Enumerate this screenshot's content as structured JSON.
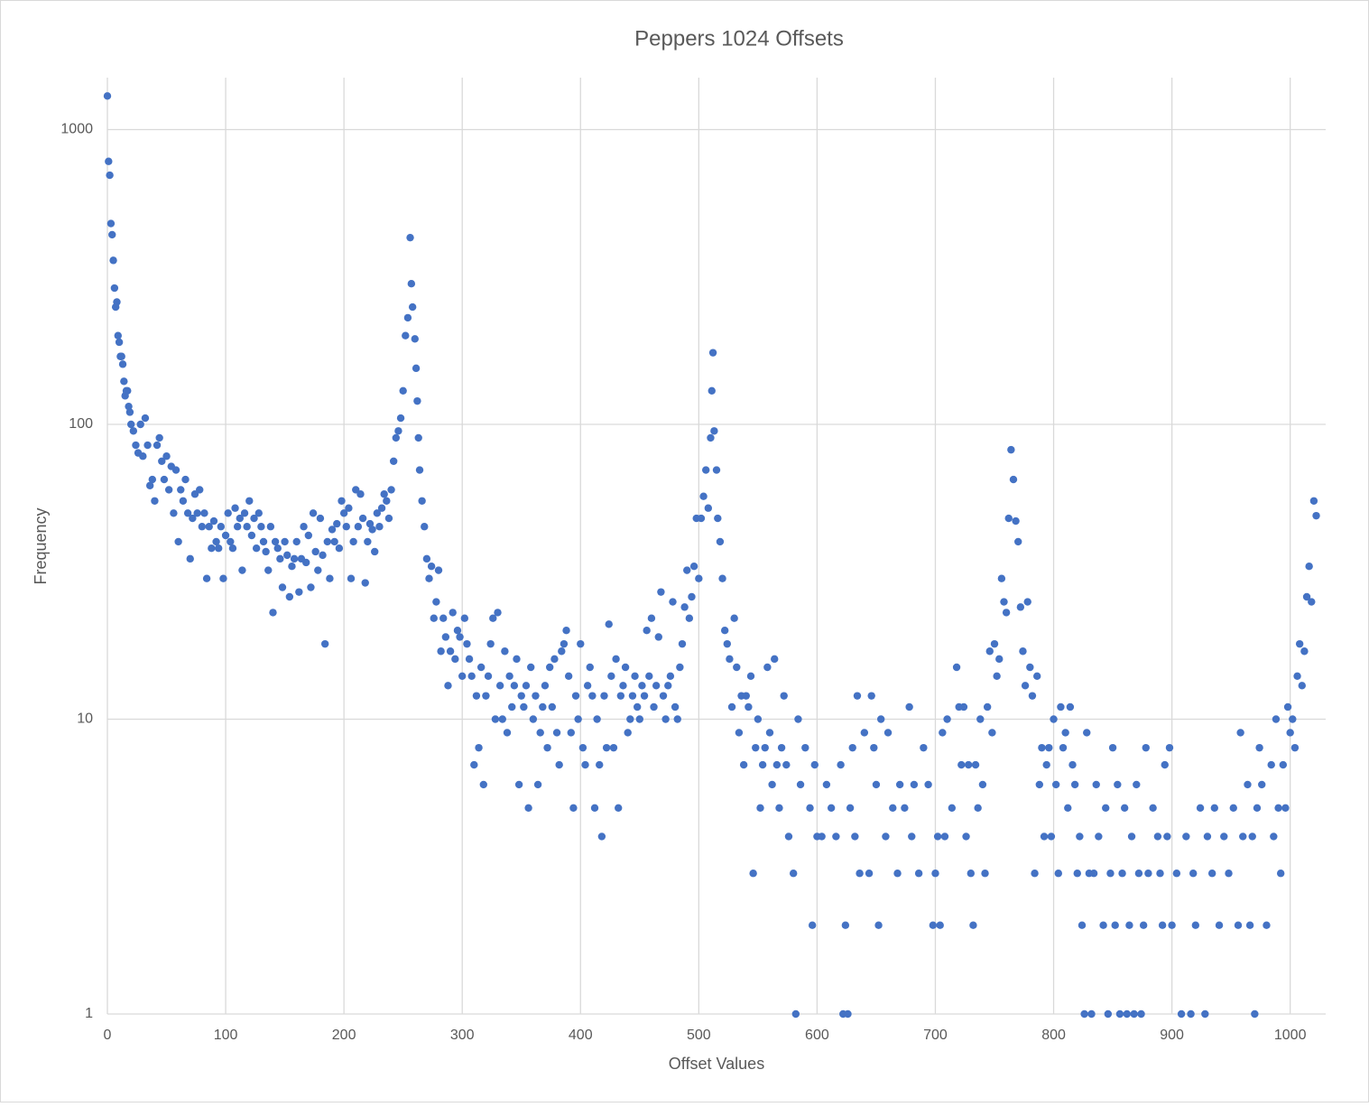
{
  "chart_data": {
    "type": "scatter",
    "title": "Peppers 1024 Offsets",
    "x_label": "Offset Values",
    "y_label": "Frequency",
    "color": "#4472c4",
    "log_y": true,
    "grid": true,
    "xlim": [
      0,
      1030
    ],
    "ylim": [
      1,
      1500
    ],
    "xticks": [
      0,
      100,
      200,
      300,
      400,
      500,
      600,
      700,
      800,
      900,
      1000
    ],
    "yticks": [
      1,
      10,
      100,
      1000
    ],
    "x": [
      0,
      1,
      2,
      3,
      4,
      5,
      6,
      7,
      8,
      9,
      10,
      11,
      12,
      13,
      14,
      15,
      16,
      17,
      18,
      19,
      20,
      22,
      24,
      26,
      28,
      30,
      32,
      34,
      36,
      38,
      40,
      42,
      44,
      46,
      48,
      50,
      52,
      54,
      56,
      58,
      60,
      62,
      64,
      66,
      68,
      70,
      72,
      74,
      76,
      78,
      80,
      82,
      84,
      86,
      88,
      90,
      92,
      94,
      96,
      98,
      100,
      102,
      104,
      106,
      108,
      110,
      112,
      114,
      116,
      118,
      120,
      122,
      124,
      126,
      128,
      130,
      132,
      134,
      136,
      138,
      140,
      142,
      144,
      146,
      148,
      150,
      152,
      154,
      156,
      158,
      160,
      162,
      164,
      166,
      168,
      170,
      172,
      174,
      176,
      178,
      180,
      182,
      184,
      186,
      188,
      190,
      192,
      194,
      196,
      198,
      200,
      202,
      204,
      206,
      208,
      210,
      212,
      214,
      216,
      218,
      220,
      222,
      224,
      226,
      228,
      230,
      232,
      234,
      236,
      238,
      240,
      242,
      244,
      246,
      248,
      250,
      252,
      254,
      256,
      257,
      258,
      260,
      261,
      262,
      263,
      264,
      266,
      268,
      270,
      272,
      274,
      276,
      278,
      280,
      282,
      284,
      286,
      288,
      290,
      292,
      294,
      296,
      298,
      300,
      302,
      304,
      306,
      308,
      310,
      312,
      314,
      316,
      318,
      320,
      322,
      324,
      326,
      328,
      330,
      332,
      334,
      336,
      338,
      340,
      342,
      344,
      346,
      348,
      350,
      352,
      354,
      356,
      358,
      360,
      362,
      364,
      366,
      368,
      370,
      372,
      374,
      376,
      378,
      380,
      382,
      384,
      386,
      388,
      390,
      392,
      394,
      396,
      398,
      400,
      402,
      404,
      406,
      408,
      410,
      412,
      414,
      416,
      418,
      420,
      422,
      424,
      426,
      428,
      430,
      432,
      434,
      436,
      438,
      440,
      442,
      444,
      446,
      448,
      450,
      452,
      454,
      456,
      458,
      460,
      462,
      464,
      466,
      468,
      470,
      472,
      474,
      476,
      478,
      480,
      482,
      484,
      486,
      488,
      490,
      492,
      494,
      496,
      498,
      500,
      502,
      504,
      506,
      508,
      510,
      511,
      512,
      513,
      515,
      516,
      518,
      520,
      522,
      524,
      526,
      528,
      530,
      532,
      534,
      536,
      538,
      540,
      542,
      544,
      546,
      548,
      550,
      552,
      554,
      556,
      558,
      560,
      562,
      564,
      566,
      568,
      570,
      572,
      574,
      576,
      580,
      582,
      584,
      586,
      590,
      594,
      596,
      598,
      600,
      604,
      608,
      612,
      616,
      620,
      622,
      624,
      626,
      628,
      630,
      632,
      634,
      636,
      640,
      644,
      646,
      648,
      650,
      652,
      654,
      658,
      660,
      664,
      668,
      670,
      674,
      678,
      680,
      682,
      686,
      690,
      694,
      698,
      700,
      702,
      704,
      706,
      708,
      710,
      714,
      718,
      720,
      722,
      724,
      726,
      728,
      730,
      732,
      734,
      736,
      738,
      740,
      742,
      744,
      746,
      748,
      750,
      752,
      754,
      756,
      758,
      760,
      762,
      764,
      766,
      768,
      770,
      772,
      774,
      776,
      778,
      780,
      782,
      784,
      786,
      788,
      790,
      792,
      794,
      796,
      798,
      800,
      802,
      804,
      806,
      808,
      810,
      812,
      814,
      816,
      818,
      820,
      822,
      824,
      826,
      828,
      830,
      832,
      834,
      836,
      838,
      842,
      844,
      846,
      848,
      850,
      852,
      854,
      856,
      858,
      860,
      862,
      864,
      866,
      868,
      870,
      872,
      874,
      876,
      878,
      880,
      884,
      888,
      890,
      892,
      894,
      896,
      898,
      900,
      904,
      908,
      912,
      916,
      918,
      920,
      924,
      928,
      930,
      934,
      936,
      940,
      944,
      948,
      952,
      956,
      958,
      960,
      964,
      966,
      968,
      970,
      972,
      974,
      976,
      980,
      984,
      986,
      988,
      990,
      992,
      994,
      996,
      998,
      1000,
      1002,
      1004,
      1006,
      1008,
      1010,
      1012,
      1014,
      1016,
      1018,
      1020,
      1022
    ],
    "values": [
      1300,
      780,
      700,
      480,
      440,
      360,
      290,
      250,
      260,
      200,
      190,
      170,
      170,
      160,
      140,
      125,
      130,
      130,
      115,
      110,
      100,
      95,
      85,
      80,
      100,
      78,
      105,
      85,
      62,
      65,
      55,
      85,
      90,
      75,
      65,
      78,
      60,
      72,
      50,
      70,
      40,
      60,
      55,
      65,
      50,
      35,
      48,
      58,
      50,
      60,
      45,
      50,
      30,
      45,
      38,
      47,
      40,
      38,
      45,
      30,
      42,
      50,
      40,
      38,
      52,
      45,
      48,
      32,
      50,
      45,
      55,
      42,
      48,
      38,
      50,
      45,
      40,
      37,
      32,
      45,
      23,
      40,
      38,
      35,
      28,
      40,
      36,
      26,
      33,
      35,
      40,
      27,
      35,
      45,
      34,
      42,
      28,
      50,
      37,
      32,
      48,
      36,
      18,
      40,
      30,
      44,
      40,
      46,
      38,
      55,
      50,
      45,
      52,
      30,
      40,
      60,
      45,
      58,
      48,
      29,
      40,
      46,
      44,
      37,
      50,
      45,
      52,
      58,
      55,
      48,
      60,
      75,
      90,
      95,
      105,
      130,
      200,
      230,
      430,
      300,
      250,
      195,
      155,
      120,
      90,
      70,
      55,
      45,
      35,
      30,
      33,
      22,
      25,
      32,
      17,
      22,
      19,
      13,
      17,
      23,
      16,
      20,
      19,
      14,
      22,
      18,
      16,
      14,
      7,
      12,
      8,
      15,
      6,
      12,
      14,
      18,
      22,
      10,
      23,
      13,
      10,
      17,
      9,
      14,
      11,
      13,
      16,
      6,
      12,
      11,
      13,
      5,
      15,
      10,
      12,
      6,
      9,
      11,
      13,
      8,
      15,
      11,
      16,
      9,
      7,
      17,
      18,
      20,
      14,
      9,
      5,
      12,
      10,
      18,
      8,
      7,
      13,
      15,
      12,
      5,
      10,
      7,
      4,
      12,
      8,
      21,
      14,
      8,
      16,
      5,
      12,
      13,
      15,
      9,
      10,
      12,
      14,
      11,
      10,
      13,
      12,
      20,
      14,
      22,
      11,
      13,
      19,
      27,
      12,
      10,
      13,
      14,
      25,
      11,
      10,
      15,
      18,
      24,
      32,
      22,
      26,
      33,
      48,
      30,
      48,
      57,
      70,
      52,
      90,
      130,
      175,
      95,
      70,
      48,
      40,
      30,
      20,
      18,
      16,
      11,
      22,
      15,
      9,
      12,
      7,
      12,
      11,
      14,
      3,
      8,
      10,
      5,
      7,
      8,
      15,
      9,
      6,
      16,
      7,
      5,
      8,
      12,
      7,
      4,
      3,
      1,
      10,
      6,
      8,
      5,
      2,
      7,
      4,
      4,
      6,
      5,
      4,
      7,
      1,
      2,
      1,
      5,
      8,
      4,
      12,
      3,
      9,
      3,
      12,
      8,
      6,
      2,
      10,
      4,
      9,
      5,
      3,
      6,
      5,
      11,
      4,
      6,
      3,
      8,
      6,
      2,
      3,
      4,
      2,
      9,
      4,
      10,
      5,
      15,
      11,
      7,
      11,
      4,
      7,
      3,
      2,
      7,
      5,
      10,
      6,
      3,
      11,
      17,
      9,
      18,
      14,
      16,
      30,
      25,
      23,
      48,
      82,
      65,
      47,
      40,
      24,
      17,
      13,
      25,
      15,
      12,
      3,
      14,
      6,
      8,
      4,
      7,
      8,
      4,
      10,
      6,
      3,
      11,
      8,
      9,
      5,
      11,
      7,
      6,
      3,
      4,
      2,
      1,
      9,
      3,
      1,
      3,
      6,
      4,
      2,
      5,
      1,
      3,
      8,
      2,
      6,
      1,
      3,
      5,
      1,
      2,
      4,
      1,
      6,
      3,
      1,
      2,
      8,
      3,
      5,
      4,
      3,
      2,
      7,
      4,
      8,
      2,
      3,
      1,
      4,
      1,
      3,
      2,
      5,
      1,
      4,
      3,
      5,
      2,
      4,
      3,
      5,
      2,
      9,
      4,
      6,
      2,
      4,
      1,
      5,
      8,
      6,
      2,
      7,
      4,
      10,
      5,
      3,
      7,
      5,
      11,
      9,
      10,
      8,
      14,
      18,
      13,
      17,
      26,
      33,
      25,
      55,
      49
    ]
  }
}
